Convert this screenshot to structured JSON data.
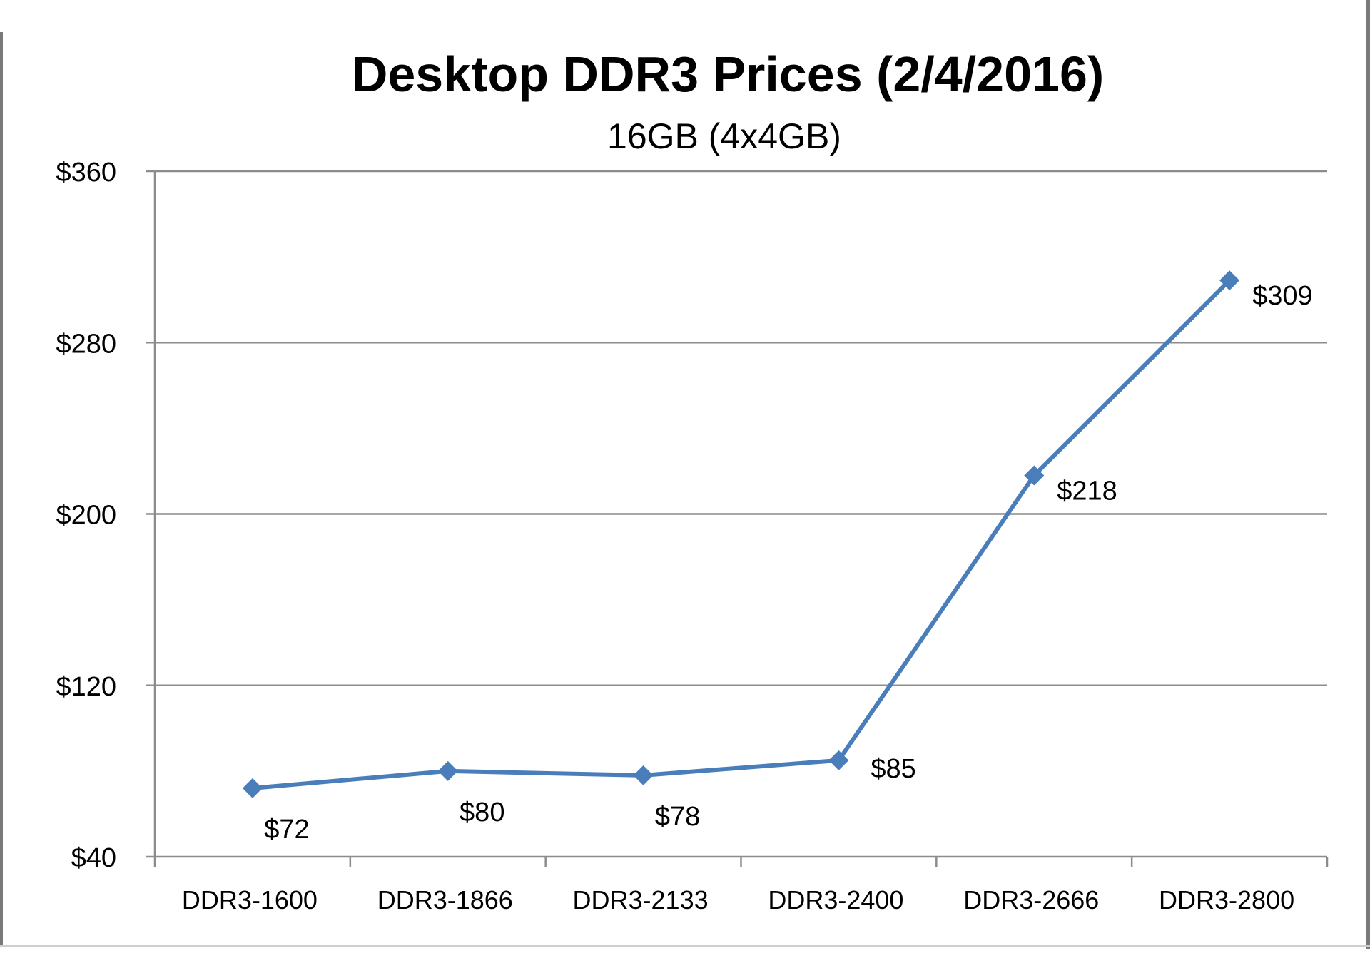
{
  "chart_data": {
    "type": "line",
    "title": "Desktop DDR3 Prices (2/4/2016)",
    "subtitle": "16GB (4x4GB)",
    "xlabel": "",
    "ylabel": "",
    "categories": [
      "DDR3-1600",
      "DDR3-1866",
      "DDR3-2133",
      "DDR3-2400",
      "DDR3-2666",
      "DDR3-2800"
    ],
    "series": [
      {
        "values": [
          72,
          80,
          78,
          85,
          218,
          309
        ],
        "labels": [
          "$72",
          "$80",
          "$78",
          "$85",
          "$218",
          "$309"
        ]
      }
    ],
    "ylim": [
      40,
      360
    ],
    "yticks": [
      40,
      120,
      200,
      280,
      360
    ],
    "ytick_labels": [
      "$40",
      "$120",
      "$200",
      "$280",
      "$360"
    ],
    "grid": true,
    "legend": "none",
    "colors": {
      "line": "#4a7ebb",
      "grid": "#8c8c8c",
      "axis": "#8c8c8c",
      "text": "#000000"
    }
  }
}
